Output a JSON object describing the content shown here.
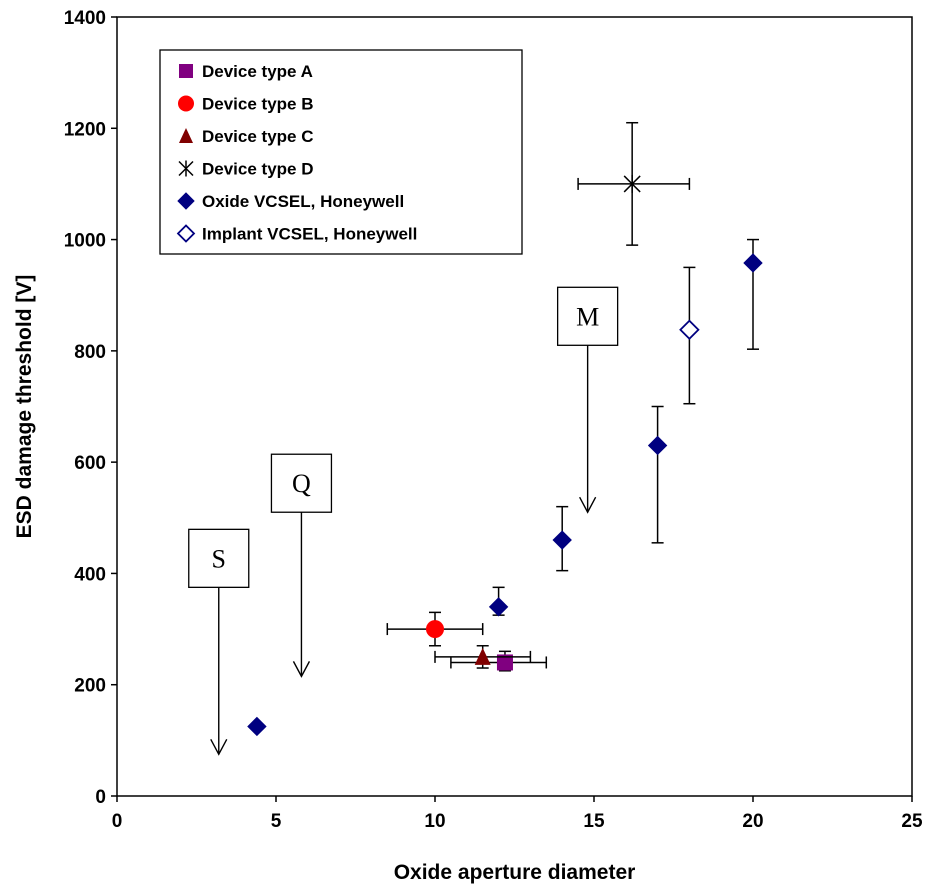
{
  "chart_data": {
    "type": "scatter",
    "xlabel": "Oxide aperture diameter",
    "ylabel": "ESD damage threshold [V]",
    "xlim": [
      0,
      25
    ],
    "ylim": [
      0,
      1400
    ],
    "xticks": [
      "0",
      "5",
      "10",
      "15",
      "20",
      "25"
    ],
    "yticks": [
      "0",
      "200",
      "400",
      "600",
      "800",
      "1000",
      "1200",
      "1400"
    ],
    "grid": false,
    "legend_position": "top-left",
    "series": [
      {
        "name": "Device type A",
        "marker": "square",
        "color": "#800080",
        "points": [
          {
            "x": 12.2,
            "y": 240,
            "xerr": [
              10.5,
              13.5
            ],
            "yerr": [
              225,
              260
            ]
          }
        ]
      },
      {
        "name": "Device type B",
        "marker": "circle",
        "color": "#ff0000",
        "points": [
          {
            "x": 10.0,
            "y": 300,
            "xerr": [
              8.5,
              11.5
            ],
            "yerr": [
              270,
              330
            ]
          }
        ]
      },
      {
        "name": "Device type C",
        "marker": "triangle",
        "color": "#800000",
        "points": [
          {
            "x": 11.5,
            "y": 250,
            "xerr": [
              10.0,
              13.0
            ],
            "yerr": [
              230,
              270
            ]
          }
        ]
      },
      {
        "name": "Device type D",
        "marker": "asterisk",
        "color": "#000000",
        "points": [
          {
            "x": 16.2,
            "y": 1100,
            "xerr": [
              14.5,
              18.0
            ],
            "yerr": [
              990,
              1210
            ]
          }
        ]
      },
      {
        "name": "Oxide VCSEL, Honeywell",
        "marker": "diamond-filled",
        "color": "#000080",
        "points": [
          {
            "x": 4.4,
            "y": 125
          },
          {
            "x": 12.0,
            "y": 340,
            "yerr": [
              325,
              375
            ]
          },
          {
            "x": 14.0,
            "y": 460,
            "yerr": [
              405,
              520
            ]
          },
          {
            "x": 17.0,
            "y": 630,
            "yerr": [
              455,
              700
            ]
          },
          {
            "x": 20.0,
            "y": 958,
            "yerr": [
              803,
              1000
            ]
          }
        ]
      },
      {
        "name": "Implant VCSEL, Honeywell",
        "marker": "diamond-open",
        "color": "#000080",
        "points": [
          {
            "x": 18.0,
            "y": 838,
            "yerr": [
              705,
              950
            ]
          }
        ]
      }
    ],
    "annotations": [
      {
        "label": "S",
        "arrow_x": 3.2,
        "arrow_from_y": 375,
        "arrow_to_y": 75
      },
      {
        "label": "Q",
        "arrow_x": 5.8,
        "arrow_from_y": 510,
        "arrow_to_y": 215
      },
      {
        "label": "M",
        "arrow_x": 14.8,
        "arrow_from_y": 810,
        "arrow_to_y": 510
      }
    ]
  }
}
